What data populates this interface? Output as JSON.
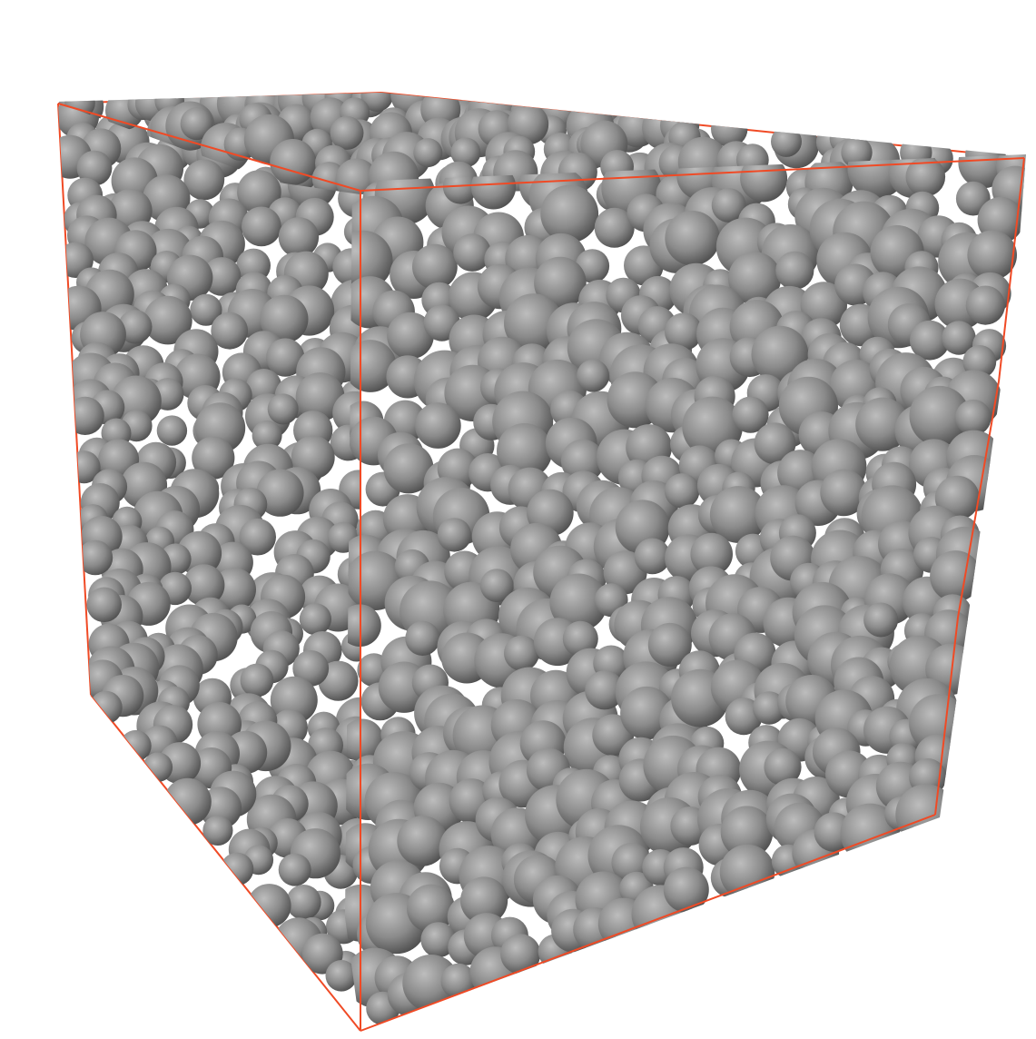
{
  "scene": {
    "background_color": "#ffffff",
    "box_edge_color": "#f04a25",
    "sphere_color": "#8a8a8a",
    "sphere_highlight_color": "#bdbdbd",
    "sphere_shadow_color": "#4a4a4a",
    "object": "packed-spheres-in-cube"
  }
}
